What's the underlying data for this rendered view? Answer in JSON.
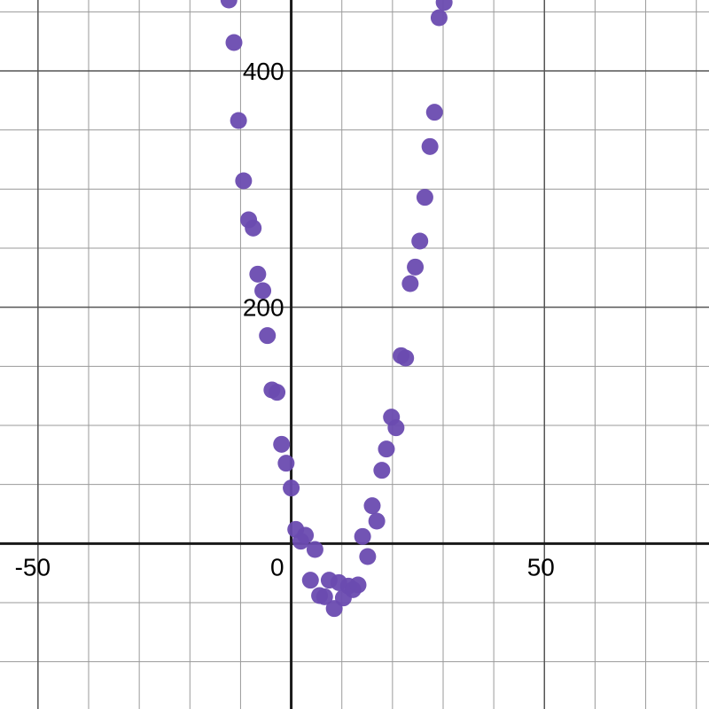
{
  "chart_data": {
    "type": "scatter",
    "title": "",
    "xlabel": "",
    "ylabel": "",
    "xlim": [
      -57.5,
      82.5
    ],
    "ylim": [
      -140,
      460
    ],
    "grid": true,
    "x_ticks_labeled": [
      {
        "value": -50,
        "label": "-50"
      },
      {
        "value": 0,
        "label": "0"
      },
      {
        "value": 50,
        "label": "50"
      }
    ],
    "y_ticks_labeled": [
      {
        "value": 200,
        "label": "200"
      },
      {
        "value": 400,
        "label": "400"
      }
    ],
    "series": [
      {
        "color": "#6a4bb0",
        "points": [
          [
            -12.3,
            460
          ],
          [
            -11.3,
            424
          ],
          [
            -10.4,
            358
          ],
          [
            -9.4,
            307
          ],
          [
            -8.4,
            274
          ],
          [
            -7.5,
            267
          ],
          [
            -6.6,
            228
          ],
          [
            -5.6,
            214
          ],
          [
            -4.7,
            176
          ],
          [
            -3.8,
            130
          ],
          [
            -2.8,
            128
          ],
          [
            -1.9,
            84
          ],
          [
            -1.0,
            68
          ],
          [
            0.0,
            47
          ],
          [
            0.9,
            12
          ],
          [
            1.9,
            2
          ],
          [
            2.8,
            7
          ],
          [
            3.8,
            -31
          ],
          [
            4.7,
            -5
          ],
          [
            5.6,
            -44
          ],
          [
            6.6,
            -45
          ],
          [
            7.5,
            -31
          ],
          [
            8.5,
            -55
          ],
          [
            9.4,
            -33
          ],
          [
            10.3,
            -46
          ],
          [
            11.3,
            -36
          ],
          [
            12.2,
            -39
          ],
          [
            13.2,
            -35
          ],
          [
            14.1,
            6
          ],
          [
            15.1,
            -11
          ],
          [
            16.0,
            32
          ],
          [
            16.9,
            19
          ],
          [
            17.9,
            62
          ],
          [
            18.8,
            80
          ],
          [
            19.8,
            107
          ],
          [
            20.7,
            98
          ],
          [
            21.7,
            159
          ],
          [
            22.6,
            157
          ],
          [
            23.5,
            220
          ],
          [
            24.5,
            234
          ],
          [
            25.4,
            256
          ],
          [
            26.4,
            293
          ],
          [
            27.4,
            336
          ],
          [
            28.3,
            365
          ],
          [
            29.2,
            445
          ],
          [
            30.2,
            458
          ]
        ]
      }
    ]
  }
}
